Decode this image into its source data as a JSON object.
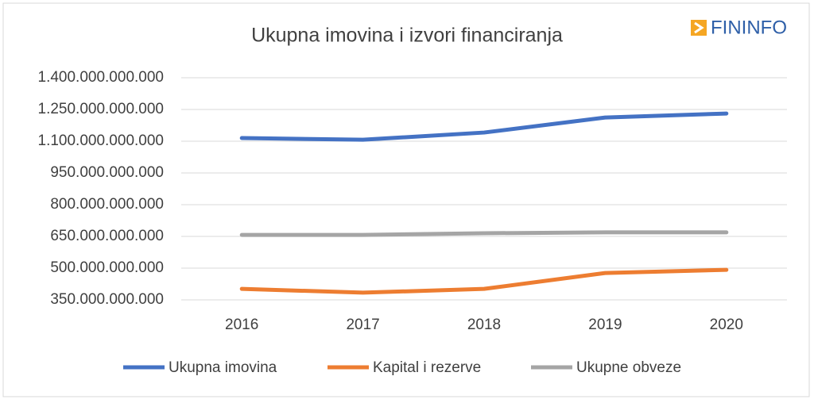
{
  "chart_data": {
    "type": "line",
    "title": "Ukupna imovina i izvori financiranja",
    "logo": "FININFO",
    "categories": [
      "2016",
      "2017",
      "2018",
      "2019",
      "2020"
    ],
    "series": [
      {
        "name": "Ukupna imovina",
        "color": "#4472c4",
        "values": [
          1115000000000,
          1107000000000,
          1141000000000,
          1212000000000,
          1231000000000
        ]
      },
      {
        "name": "Kapital i rezerve",
        "color": "#ed7d31",
        "values": [
          402000000000,
          384000000000,
          402000000000,
          477000000000,
          492000000000
        ]
      },
      {
        "name": "Ukupne obveze",
        "color": "#a5a5a5",
        "values": [
          657000000000,
          657000000000,
          665000000000,
          669000000000,
          669000000000
        ]
      }
    ],
    "ylim": [
      350000000000,
      1400000000000
    ],
    "yticks": [
      {
        "value": 350000000000,
        "label": "350.000.000.000"
      },
      {
        "value": 500000000000,
        "label": "500.000.000.000"
      },
      {
        "value": 650000000000,
        "label": "650.000.000.000"
      },
      {
        "value": 800000000000,
        "label": "800.000.000.000"
      },
      {
        "value": 950000000000,
        "label": "950.000.000.000"
      },
      {
        "value": 1100000000000,
        "label": "1.100.000.000.000"
      },
      {
        "value": 1250000000000,
        "label": "1.250.000.000.000"
      },
      {
        "value": 1400000000000,
        "label": "1.400.000.000.000"
      }
    ],
    "grid": true,
    "legend": "bottom"
  }
}
